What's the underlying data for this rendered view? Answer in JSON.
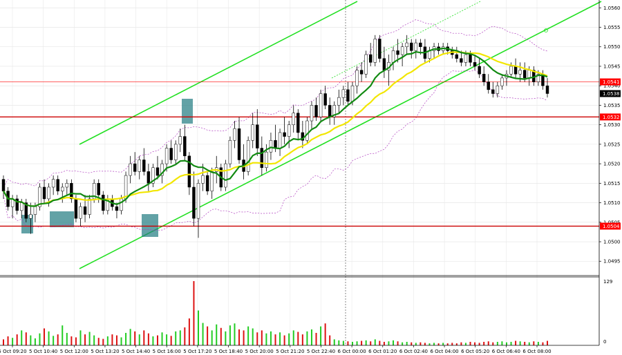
{
  "chart_data": {
    "type": "candlestick",
    "price_axis": {
      "ticks": [
        "1.0560",
        "1.0555",
        "1.0550",
        "1.0545",
        "1.0540",
        "1.0535",
        "1.0530",
        "1.0525",
        "1.0520",
        "1.0515",
        "1.0510",
        "1.0505",
        "1.0500",
        "1.0495"
      ],
      "ylim": [
        1.04915,
        1.0562
      ]
    },
    "time_axis": {
      "labels": [
        "5 Oct 09:20",
        "5 Oct 10:40",
        "5 Oct 12:00",
        "5 Oct 13:20",
        "5 Oct 14:40",
        "5 Oct 16:00",
        "5 Oct 17:20",
        "5 Oct 18:40",
        "5 Oct 20:00",
        "5 Oct 21:20",
        "5 Oct 22:40",
        "6 Oct 00:00",
        "6 Oct 01:20",
        "6 Oct 02:40",
        "6 Oct 04:00",
        "6 Oct 05:20",
        "6 Oct 06:40",
        "6 Oct 08:00"
      ]
    },
    "price_levels": [
      {
        "label": "1.0541",
        "value": 1.0541,
        "color": "#ff0000",
        "style": "thin"
      },
      {
        "label": "1.0538",
        "value": 1.0538,
        "color": "#000000",
        "style": "current"
      },
      {
        "label": "1.0532",
        "value": 1.0532,
        "color": "#cc0000",
        "style": "thick"
      },
      {
        "label": "1.0504",
        "value": 1.0504,
        "color": "#cc0000",
        "style": "thick"
      }
    ],
    "volume_axis": {
      "max_label": "129",
      "min_label": "0",
      "max": 129
    },
    "candles_ohlc": [
      [
        1.0516,
        1.0517,
        1.0511,
        1.0513
      ],
      [
        1.0513,
        1.0514,
        1.0508,
        1.0509
      ],
      [
        1.0509,
        1.0512,
        1.0506,
        1.0511
      ],
      [
        1.0511,
        1.0512,
        1.0507,
        1.0508
      ],
      [
        1.0508,
        1.0511,
        1.0506,
        1.051
      ],
      [
        1.051,
        1.0511,
        1.0505,
        1.0506
      ],
      [
        1.0506,
        1.051,
        1.0502,
        1.0507
      ],
      [
        1.0507,
        1.051,
        1.0505,
        1.0509
      ],
      [
        1.0509,
        1.0515,
        1.0508,
        1.0514
      ],
      [
        1.0514,
        1.0516,
        1.051,
        1.0511
      ],
      [
        1.0511,
        1.0515,
        1.0509,
        1.0514
      ],
      [
        1.0514,
        1.0517,
        1.0512,
        1.0516
      ],
      [
        1.0516,
        1.0517,
        1.0512,
        1.0513
      ],
      [
        1.0513,
        1.0515,
        1.051,
        1.0514
      ],
      [
        1.0514,
        1.0516,
        1.0512,
        1.0515
      ],
      [
        1.0515,
        1.0516,
        1.051,
        1.0511
      ],
      [
        1.0511,
        1.0512,
        1.0505,
        1.0506
      ],
      [
        1.0506,
        1.051,
        1.0504,
        1.0509
      ],
      [
        1.0509,
        1.0512,
        1.0505,
        1.0507
      ],
      [
        1.0507,
        1.0512,
        1.0506,
        1.0511
      ],
      [
        1.0511,
        1.0516,
        1.051,
        1.0515
      ],
      [
        1.0515,
        1.0516,
        1.051,
        1.0512
      ],
      [
        1.0512,
        1.0513,
        1.0507,
        1.0508
      ],
      [
        1.0508,
        1.0512,
        1.0507,
        1.0511
      ],
      [
        1.0511,
        1.0512,
        1.0508,
        1.0509
      ],
      [
        1.0509,
        1.051,
        1.0506,
        1.0508
      ],
      [
        1.0508,
        1.0512,
        1.0507,
        1.0511
      ],
      [
        1.0511,
        1.0518,
        1.051,
        1.0517
      ],
      [
        1.0517,
        1.0522,
        1.0515,
        1.052
      ],
      [
        1.052,
        1.0523,
        1.0517,
        1.0518
      ],
      [
        1.0518,
        1.0522,
        1.0516,
        1.0521
      ],
      [
        1.0521,
        1.0524,
        1.0517,
        1.0518
      ],
      [
        1.0518,
        1.052,
        1.0513,
        1.0515
      ],
      [
        1.0515,
        1.052,
        1.0514,
        1.0519
      ],
      [
        1.0519,
        1.0522,
        1.0516,
        1.0517
      ],
      [
        1.0517,
        1.0521,
        1.0515,
        1.052
      ],
      [
        1.052,
        1.0525,
        1.0518,
        1.0524
      ],
      [
        1.0524,
        1.0526,
        1.052,
        1.0521
      ],
      [
        1.0521,
        1.0526,
        1.052,
        1.0525
      ],
      [
        1.0525,
        1.0529,
        1.0523,
        1.0527
      ],
      [
        1.0527,
        1.053,
        1.0521,
        1.0522
      ],
      [
        1.0522,
        1.0523,
        1.0512,
        1.0514
      ],
      [
        1.0514,
        1.0518,
        1.0504,
        1.0506
      ],
      [
        1.0506,
        1.0516,
        1.0501,
        1.0515
      ],
      [
        1.0515,
        1.052,
        1.0513,
        1.0517
      ],
      [
        1.0517,
        1.0518,
        1.0512,
        1.0513
      ],
      [
        1.0513,
        1.0519,
        1.0511,
        1.0518
      ],
      [
        1.0518,
        1.0522,
        1.0515,
        1.0519
      ],
      [
        1.0519,
        1.052,
        1.0513,
        1.0514
      ],
      [
        1.0514,
        1.0521,
        1.0513,
        1.052
      ],
      [
        1.052,
        1.0527,
        1.0519,
        1.0526
      ],
      [
        1.0526,
        1.0531,
        1.0524,
        1.0529
      ],
      [
        1.0529,
        1.0532,
        1.052,
        1.0521
      ],
      [
        1.0521,
        1.0525,
        1.0516,
        1.0518
      ],
      [
        1.0518,
        1.0527,
        1.0517,
        1.0526
      ],
      [
        1.0526,
        1.0533,
        1.0524,
        1.053
      ],
      [
        1.053,
        1.0534,
        1.0522,
        1.0524
      ],
      [
        1.0524,
        1.0527,
        1.0517,
        1.0519
      ],
      [
        1.0519,
        1.0525,
        1.0518,
        1.0523
      ],
      [
        1.0523,
        1.0528,
        1.0521,
        1.0526
      ],
      [
        1.0526,
        1.053,
        1.0523,
        1.0524
      ],
      [
        1.0524,
        1.0529,
        1.0522,
        1.0528
      ],
      [
        1.0528,
        1.0532,
        1.0525,
        1.0527
      ],
      [
        1.0527,
        1.0531,
        1.0524,
        1.053
      ],
      [
        1.053,
        1.0535,
        1.0528,
        1.0533
      ],
      [
        1.0533,
        1.0534,
        1.0526,
        1.0528
      ],
      [
        1.0528,
        1.0531,
        1.0524,
        1.0526
      ],
      [
        1.0526,
        1.0532,
        1.0525,
        1.0531
      ],
      [
        1.0531,
        1.0536,
        1.0529,
        1.0535
      ],
      [
        1.0535,
        1.0537,
        1.0531,
        1.0532
      ],
      [
        1.0532,
        1.0539,
        1.0531,
        1.0538
      ],
      [
        1.0538,
        1.054,
        1.0534,
        1.0535
      ],
      [
        1.0535,
        1.0537,
        1.053,
        1.0532
      ],
      [
        1.0532,
        1.0536,
        1.053,
        1.0535
      ],
      [
        1.0535,
        1.0539,
        1.0533,
        1.0537
      ],
      [
        1.0537,
        1.054,
        1.0535,
        1.0539
      ],
      [
        1.0539,
        1.0541,
        1.0535,
        1.0536
      ],
      [
        1.0536,
        1.0541,
        1.0535,
        1.054
      ],
      [
        1.054,
        1.0545,
        1.0538,
        1.0544
      ],
      [
        1.0544,
        1.0546,
        1.0541,
        1.0543
      ],
      [
        1.0543,
        1.0549,
        1.0542,
        1.0548
      ],
      [
        1.0548,
        1.0551,
        1.0545,
        1.0546
      ],
      [
        1.0546,
        1.0553,
        1.0545,
        1.0552
      ],
      [
        1.0552,
        1.0553,
        1.0546,
        1.0547
      ],
      [
        1.0547,
        1.055,
        1.0542,
        1.0544
      ],
      [
        1.0544,
        1.0548,
        1.054,
        1.0546
      ],
      [
        1.0546,
        1.055,
        1.0544,
        1.0549
      ],
      [
        1.0549,
        1.0552,
        1.0546,
        1.0548
      ],
      [
        1.0548,
        1.0551,
        1.0545,
        1.055
      ],
      [
        1.055,
        1.0553,
        1.0548,
        1.0551
      ],
      [
        1.0551,
        1.0552,
        1.0547,
        1.0549
      ],
      [
        1.0549,
        1.0552,
        1.0547,
        1.0551
      ],
      [
        1.0551,
        1.0552,
        1.0548,
        1.055
      ],
      [
        1.055,
        1.0552,
        1.0546,
        1.0547
      ],
      [
        1.0547,
        1.055,
        1.0546,
        1.0549
      ],
      [
        1.0549,
        1.0551,
        1.0547,
        1.055
      ],
      [
        1.055,
        1.0551,
        1.0548,
        1.0549
      ],
      [
        1.0549,
        1.0551,
        1.0548,
        1.055
      ],
      [
        1.055,
        1.0551,
        1.0548,
        1.0549
      ],
      [
        1.0549,
        1.055,
        1.0547,
        1.0548
      ],
      [
        1.0548,
        1.055,
        1.0546,
        1.0547
      ],
      [
        1.0547,
        1.0549,
        1.0545,
        1.0546
      ],
      [
        1.0546,
        1.0549,
        1.0545,
        1.0548
      ],
      [
        1.0548,
        1.0549,
        1.0545,
        1.0546
      ],
      [
        1.0546,
        1.0548,
        1.0544,
        1.0545
      ],
      [
        1.0545,
        1.0547,
        1.0542,
        1.0543
      ],
      [
        1.0543,
        1.0545,
        1.054,
        1.0541
      ],
      [
        1.0541,
        1.0543,
        1.0538,
        1.0539
      ],
      [
        1.0539,
        1.0541,
        1.0537,
        1.0538
      ],
      [
        1.0538,
        1.0541,
        1.0537,
        1.054
      ],
      [
        1.054,
        1.0543,
        1.0539,
        1.0542
      ],
      [
        1.0542,
        1.0544,
        1.054,
        1.0543
      ],
      [
        1.0543,
        1.0546,
        1.0542,
        1.0545
      ],
      [
        1.0545,
        1.0547,
        1.0542,
        1.0543
      ],
      [
        1.0543,
        1.0546,
        1.0541,
        1.0544
      ],
      [
        1.0544,
        1.0546,
        1.0541,
        1.0542
      ],
      [
        1.0542,
        1.0545,
        1.054,
        1.0544
      ],
      [
        1.0544,
        1.0545,
        1.054,
        1.0541
      ],
      [
        1.0541,
        1.0544,
        1.054,
        1.0543
      ],
      [
        1.0543,
        1.0544,
        1.0539,
        1.054
      ],
      [
        1.054,
        1.0542,
        1.0537,
        1.0538
      ]
    ],
    "volumes": [
      12,
      18,
      15,
      22,
      30,
      26,
      20,
      14,
      24,
      34,
      28,
      19,
      22,
      40,
      25,
      18,
      16,
      30,
      22,
      27,
      20,
      15,
      13,
      18,
      22,
      20,
      16,
      25,
      33,
      28,
      22,
      30,
      24,
      18,
      20,
      26,
      22,
      19,
      28,
      30,
      36,
      54,
      129,
      70,
      45,
      38,
      30,
      42,
      35,
      28,
      40,
      44,
      32,
      30,
      38,
      34,
      26,
      30,
      24,
      28,
      22,
      26,
      20,
      24,
      30,
      27,
      22,
      28,
      32,
      25,
      38,
      44,
      20,
      12,
      10,
      9,
      8,
      7,
      8,
      9,
      10,
      8,
      12,
      9,
      7,
      8,
      10,
      8,
      6,
      7,
      6,
      5,
      6,
      5,
      4,
      5,
      4,
      5,
      4,
      5,
      4,
      6,
      5,
      7,
      6,
      5,
      7,
      8,
      6,
      7,
      8,
      6,
      7,
      9,
      8,
      7,
      6,
      8,
      7,
      6,
      9
    ]
  }
}
